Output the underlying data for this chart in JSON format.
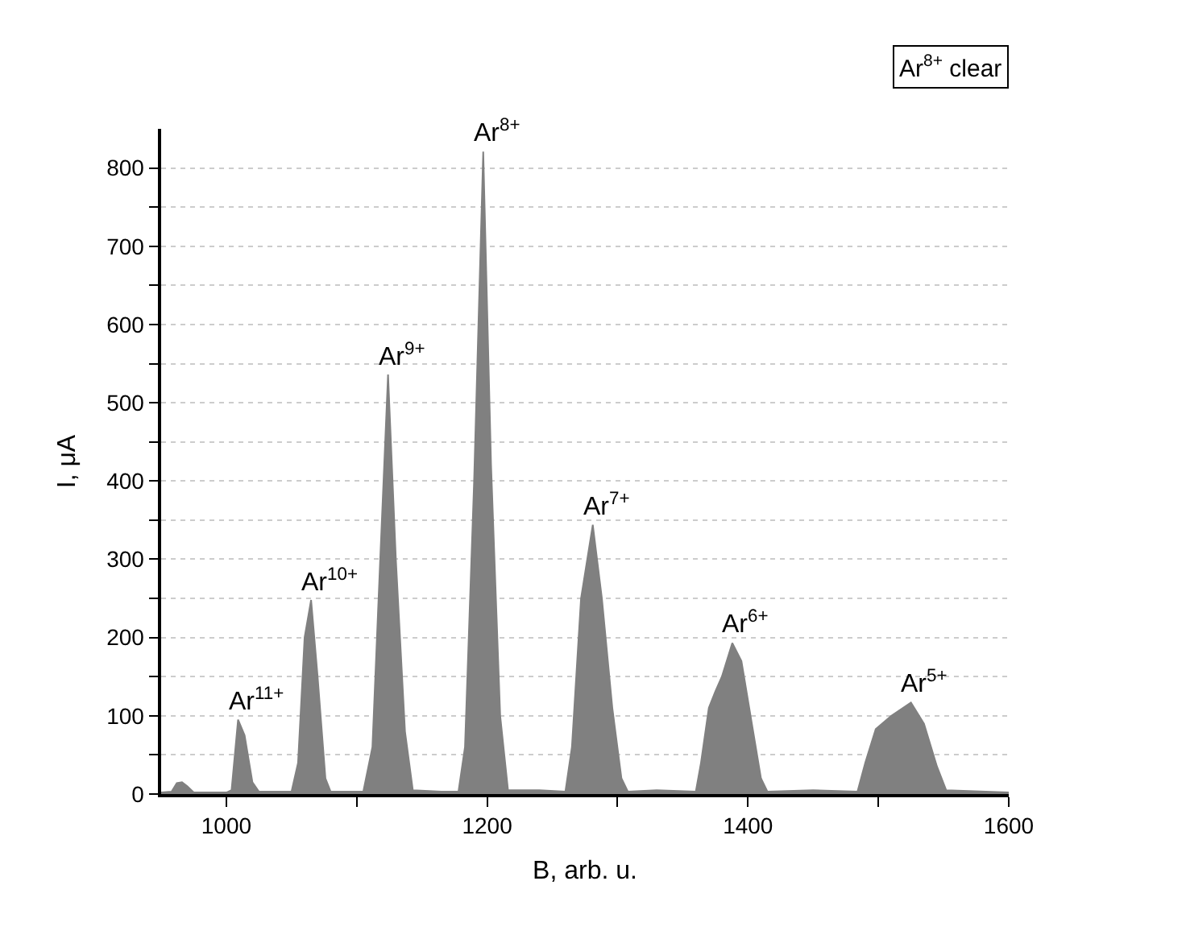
{
  "chart_data": {
    "type": "area",
    "xlabel": "B, arb. u.",
    "ylabel": "I, μA",
    "x": [
      950,
      958,
      962,
      966,
      970,
      975,
      1000,
      1004,
      1009,
      1014,
      1020,
      1025,
      1050,
      1055,
      1060,
      1065,
      1070,
      1076,
      1080,
      1105,
      1112,
      1118,
      1124,
      1130,
      1137,
      1143,
      1165,
      1178,
      1183,
      1190,
      1197,
      1203,
      1210,
      1216,
      1240,
      1260,
      1265,
      1272,
      1281,
      1288,
      1296,
      1303,
      1308,
      1330,
      1360,
      1364,
      1370,
      1375,
      1380,
      1388,
      1395,
      1402,
      1410,
      1415,
      1450,
      1484,
      1490,
      1498,
      1510,
      1525,
      1535,
      1545,
      1552,
      1600
    ],
    "series": [
      {
        "color": "#808080",
        "values": [
          2,
          3,
          14,
          15,
          10,
          2,
          2,
          5,
          95,
          75,
          15,
          3,
          3,
          40,
          200,
          248,
          150,
          20,
          3,
          3,
          60,
          300,
          536,
          300,
          80,
          5,
          3,
          3,
          60,
          400,
          821,
          420,
          100,
          5,
          5,
          3,
          60,
          250,
          344,
          250,
          110,
          20,
          3,
          5,
          3,
          40,
          110,
          131,
          150,
          193,
          170,
          100,
          20,
          3,
          5,
          3,
          40,
          83,
          100,
          117,
          90,
          35,
          5,
          2
        ]
      }
    ],
    "xlim": [
      950,
      1600
    ],
    "xticks": [
      1000,
      {
        "value": 1100,
        "label": null
      },
      1200,
      {
        "value": 1300,
        "label": null
      },
      1400,
      {
        "value": 1500,
        "label": null
      },
      1600
    ],
    "ylim": [
      0,
      850
    ],
    "yticks": [
      0,
      {
        "value": 50,
        "label": null
      },
      100,
      {
        "value": 150,
        "label": null
      },
      200,
      {
        "value": 250,
        "label": null
      },
      300,
      {
        "value": 350,
        "label": null
      },
      400,
      {
        "value": 450,
        "label": null
      },
      500,
      {
        "value": 550,
        "label": null
      },
      600,
      {
        "value": 650,
        "label": null
      },
      700,
      {
        "value": 750,
        "label": null
      },
      800
    ],
    "grid": "y",
    "annotations": [
      {
        "text": "Ar$^{11+}$",
        "x": 1009,
        "y": 95
      },
      {
        "text": "Ar$^{10+}$",
        "x": 1065,
        "y": 248
      },
      {
        "text": "Ar$^{9+}$",
        "x": 1124,
        "y": 536
      },
      {
        "text": "Ar$^{8+}$",
        "x": 1197,
        "y": 821
      },
      {
        "text": "Ar$^{7+}$",
        "x": 1281,
        "y": 344
      },
      {
        "text": "Ar$^{6+}$",
        "x": 1388,
        "y": 193
      },
      {
        "text": "Ar$^{5+}$",
        "x": 1525,
        "y": 117
      },
      "Ar$^{8+}$ clear"
    ]
  }
}
